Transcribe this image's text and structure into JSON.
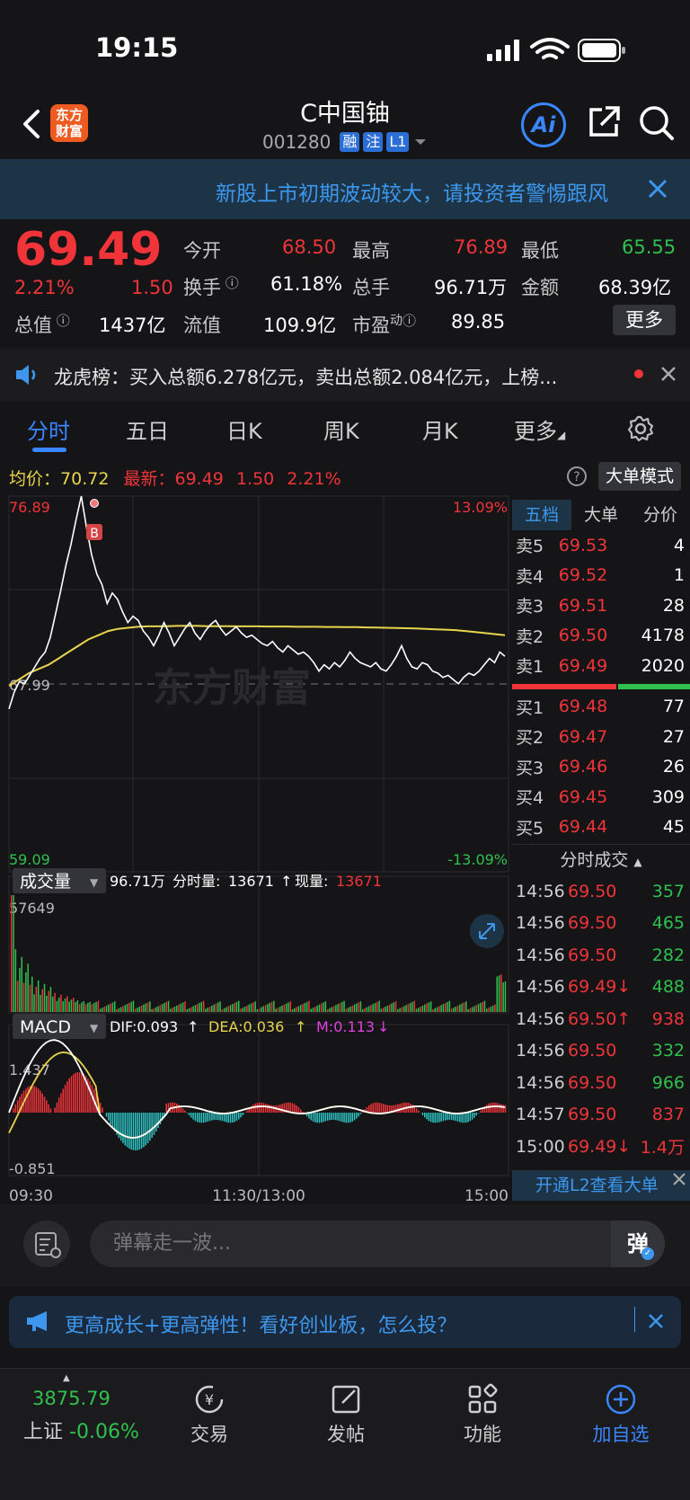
{
  "status": {
    "time": "19:15"
  },
  "header": {
    "logo_line1": "东方",
    "logo_line2": "财富",
    "name": "C中国铀",
    "code": "001280",
    "tags": [
      "融",
      "注",
      "L1"
    ],
    "ai_label": "Ai"
  },
  "warning": {
    "text": "新股上市初期波动较大，请投资者警惕跟风"
  },
  "quote": {
    "price": "69.49",
    "change_pct": "2.21%",
    "change": "1.50",
    "open_label": "今开",
    "open": "68.50",
    "high_label": "最高",
    "high": "76.89",
    "low_label": "最低",
    "low": "65.55",
    "turnover_label": "换手",
    "turnover": "61.18%",
    "volume_label": "总手",
    "volume": "96.71万",
    "amount_label": "金额",
    "amount": "68.39亿",
    "mktcap_label": "总值",
    "mktcap": "1437亿",
    "float_label": "流值",
    "float": "109.9亿",
    "pe_label": "市盈",
    "pe_sup": "动",
    "pe": "89.85",
    "more_label": "更多"
  },
  "dragon_tiger": {
    "text": "龙虎榜：买入总额6.278亿元，卖出总额2.084亿元，上榜..."
  },
  "tabs": [
    "分时",
    "五日",
    "日K",
    "周K",
    "月K",
    "更多"
  ],
  "info_row": {
    "avg_label": "均价：",
    "avg": "70.72",
    "latest_label": "最新：",
    "latest": "69.49",
    "chg": "1.50",
    "pct": "2.21%",
    "bigorder_label": "大单模式"
  },
  "chart_labels": {
    "top_price": "76.89",
    "top_pct": "13.09%",
    "mid_price": "67.99",
    "bottom_price": "59.09",
    "bottom_pct": "-13.09%",
    "watermark": "东方财富",
    "volume_select": "成交量",
    "volume_total": "96.71万",
    "minute_vol_label": "分时量:",
    "minute_vol": "13671",
    "current_vol_label": "现量:",
    "current_vol": "13671",
    "vol_max": "57649",
    "macd_select": "MACD",
    "dif": "DIF:0.093",
    "dea": "DEA:0.036",
    "m": "M:0.113",
    "macd_top": "1.437",
    "macd_bottom": "-0.851",
    "time_start": "09:30",
    "time_mid": "11:30/13:00",
    "time_end": "15:00"
  },
  "orderbook": {
    "tabs": [
      "五档",
      "大单",
      "分价"
    ],
    "asks": [
      {
        "label": "卖5",
        "price": "69.53",
        "vol": "4"
      },
      {
        "label": "卖4",
        "price": "69.52",
        "vol": "1"
      },
      {
        "label": "卖3",
        "price": "69.51",
        "vol": "28"
      },
      {
        "label": "卖2",
        "price": "69.50",
        "vol": "4178"
      },
      {
        "label": "卖1",
        "price": "69.49",
        "vol": "2020"
      }
    ],
    "bids": [
      {
        "label": "买1",
        "price": "69.48",
        "vol": "77"
      },
      {
        "label": "买2",
        "price": "69.47",
        "vol": "27"
      },
      {
        "label": "买3",
        "price": "69.46",
        "vol": "26"
      },
      {
        "label": "买4",
        "price": "69.45",
        "vol": "309"
      },
      {
        "label": "买5",
        "price": "69.44",
        "vol": "45"
      }
    ],
    "ticks_label": "分时成交",
    "ticks": [
      {
        "time": "14:56",
        "price": "69.50",
        "vol": "357",
        "dir": "",
        "vcolor": "green"
      },
      {
        "time": "14:56",
        "price": "69.50",
        "vol": "465",
        "dir": "",
        "vcolor": "green"
      },
      {
        "time": "14:56",
        "price": "69.50",
        "vol": "282",
        "dir": "",
        "vcolor": "green"
      },
      {
        "time": "14:56",
        "price": "69.49",
        "vol": "488",
        "dir": "↓",
        "vcolor": "green"
      },
      {
        "time": "14:56",
        "price": "69.50",
        "vol": "938",
        "dir": "↑",
        "vcolor": "red"
      },
      {
        "time": "14:56",
        "price": "69.50",
        "vol": "332",
        "dir": "",
        "vcolor": "green"
      },
      {
        "time": "14:56",
        "price": "69.50",
        "vol": "966",
        "dir": "",
        "vcolor": "green"
      },
      {
        "time": "14:57",
        "price": "69.50",
        "vol": "837",
        "dir": "",
        "vcolor": "red"
      },
      {
        "time": "15:00",
        "price": "69.49",
        "vol": "1.4万",
        "dir": "↓",
        "vcolor": "red"
      }
    ],
    "l2_label": "开通L2查看大单"
  },
  "comment": {
    "placeholder": "弹幕走一波...",
    "send_label": "弹"
  },
  "promo": {
    "text": "更高成长+更高弹性！看好创业板，怎么投？"
  },
  "bottom_nav": {
    "index_value": "3875.79",
    "index_name": "上证",
    "index_change": "-0.06%",
    "items": [
      "交易",
      "发帖",
      "功能",
      "加自选"
    ]
  },
  "chart_data": {
    "type": "line",
    "x_range": [
      "09:30",
      "15:00"
    ],
    "ylim": [
      59.09,
      76.89
    ],
    "prev_close": 67.99,
    "price_series": [
      66.8,
      67.6,
      68.1,
      68.0,
      68.4,
      68.8,
      69.2,
      69.5,
      70.2,
      71.3,
      72.4,
      73.6,
      74.6,
      75.8,
      76.89,
      75.4,
      74.1,
      73.2,
      72.7,
      71.8,
      72.3,
      72.0,
      71.4,
      70.9,
      71.2,
      71.0,
      70.5,
      70.2,
      69.8,
      70.3,
      70.9,
      70.4,
      69.8,
      70.2,
      70.6,
      70.9,
      70.4,
      70.1,
      70.5,
      70.8,
      71.0,
      70.6,
      70.3,
      70.5,
      70.7,
      70.4,
      70.2,
      70.3,
      70.1,
      69.9,
      69.8,
      70.0,
      69.7,
      69.5,
      69.8,
      69.6,
      69.4,
      69.5,
      69.3,
      69.0,
      68.6,
      68.9,
      68.7,
      69.0,
      68.8,
      69.1,
      69.5,
      69.2,
      69.0,
      68.9,
      68.8,
      69.0,
      68.7,
      68.6,
      68.9,
      69.3,
      69.8,
      69.2,
      68.8,
      68.7,
      69.0,
      68.9,
      68.6,
      68.5,
      68.3,
      68.4,
      68.2,
      68.0,
      68.3,
      68.5,
      68.4,
      68.6,
      68.9,
      69.2,
      69.0,
      69.5,
      69.3
    ],
    "avg_series": [
      67.9,
      68.2,
      68.5,
      68.7,
      68.9,
      69.2,
      69.5,
      69.8,
      70.1,
      70.3,
      70.5,
      70.6,
      70.65,
      70.7,
      70.72,
      70.72,
      70.73,
      70.74,
      70.74,
      70.74,
      70.73,
      70.73,
      70.73,
      70.72,
      70.72,
      70.72,
      70.71,
      70.71,
      70.71,
      70.7,
      70.7,
      70.7,
      70.69,
      70.69,
      70.68,
      70.68,
      70.67,
      70.66,
      70.65,
      70.64,
      70.63,
      70.62,
      70.6,
      70.58,
      70.56,
      70.54,
      70.5,
      70.45,
      70.4,
      70.35,
      70.3
    ],
    "volume_max": 57649,
    "macd": {
      "dif": 0.093,
      "dea": 0.036,
      "m": 0.113,
      "ylim": [
        -0.851,
        1.437
      ]
    }
  }
}
